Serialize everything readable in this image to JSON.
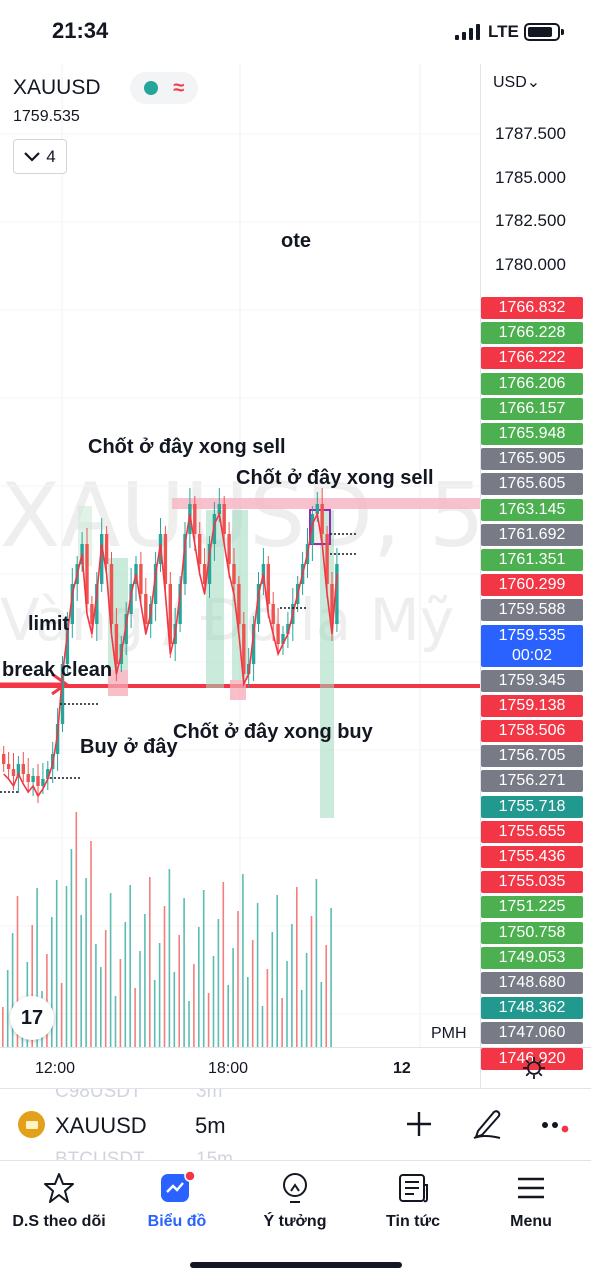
{
  "status": {
    "time": "21:34",
    "network": "LTE"
  },
  "chart": {
    "symbol": "XAUUSD",
    "last_price": "1759.535",
    "indicator_count": "4",
    "watermark_line1": "XAUUSD, 5",
    "watermark_line2": "Vàng / Đô la Mỹ",
    "currency": "USD",
    "annotations": {
      "ote": "ote",
      "sell1": "Chốt ở đây xong sell",
      "sell2": "Chốt ở đây xong sell",
      "limit": "limit",
      "break_clean": "break clean",
      "buy_here": "Buy ở đây",
      "buy_close": "Chốt ở đây xong buy"
    },
    "price_ticks": [
      "1787.500",
      "1785.000",
      "1782.500",
      "1780.000"
    ],
    "price_tags": [
      {
        "label": "1766.832",
        "color": "red"
      },
      {
        "label": "1766.228",
        "color": "green"
      },
      {
        "label": "1766.222",
        "color": "red"
      },
      {
        "label": "1766.206",
        "color": "green"
      },
      {
        "label": "1766.157",
        "color": "green"
      },
      {
        "label": "1765.948",
        "color": "green"
      },
      {
        "label": "1765.905",
        "color": "gray"
      },
      {
        "label": "1765.605",
        "color": "gray"
      },
      {
        "label": "1763.145",
        "color": "green"
      },
      {
        "label": "1761.692",
        "color": "gray"
      },
      {
        "label": "1761.351",
        "color": "green"
      },
      {
        "label": "1760.299",
        "color": "red"
      },
      {
        "label": "1759.588",
        "color": "gray"
      },
      {
        "label": "1759.535",
        "color": "blue"
      },
      {
        "label": "1759.345",
        "color": "gray"
      },
      {
        "label": "1759.138",
        "color": "red"
      },
      {
        "label": "1758.506",
        "color": "red"
      },
      {
        "label": "1756.705",
        "color": "gray"
      },
      {
        "label": "1756.271",
        "color": "gray"
      },
      {
        "label": "1755.718",
        "color": "teal"
      },
      {
        "label": "1755.655",
        "color": "red"
      },
      {
        "label": "1755.436",
        "color": "red"
      },
      {
        "label": "1755.035",
        "color": "red"
      },
      {
        "label": "1751.225",
        "color": "green"
      },
      {
        "label": "1750.758",
        "color": "green"
      },
      {
        "label": "1749.053",
        "color": "green"
      },
      {
        "label": "1748.680",
        "color": "gray"
      },
      {
        "label": "1748.362",
        "color": "teal"
      },
      {
        "label": "1747.060",
        "color": "gray"
      },
      {
        "label": "1746.920",
        "color": "red"
      }
    ],
    "countdown": "00:02",
    "session_label": "PMH",
    "time_labels": [
      "12:00",
      "18:00",
      "12"
    ],
    "colors": {
      "up": "#26a69a",
      "down": "#ef5350",
      "ma": "#f23645",
      "accent": "#2962ff"
    }
  },
  "symbol_bar": {
    "symbol": "XAUUSD",
    "interval": "5m",
    "ghost_row1_symbol": "C98USDT",
    "ghost_row1_interval": "3m",
    "ghost_row2_symbol": "BTCUSDT",
    "ghost_row2_interval": "15m"
  },
  "tabs": [
    {
      "label": "D.S theo dõi",
      "icon": "star-icon"
    },
    {
      "label": "Biểu đồ",
      "icon": "chart-icon",
      "active": true
    },
    {
      "label": "Ý tưởng",
      "icon": "lightbulb-icon"
    },
    {
      "label": "Tin tức",
      "icon": "news-icon"
    },
    {
      "label": "Menu",
      "icon": "menu-icon"
    }
  ]
}
